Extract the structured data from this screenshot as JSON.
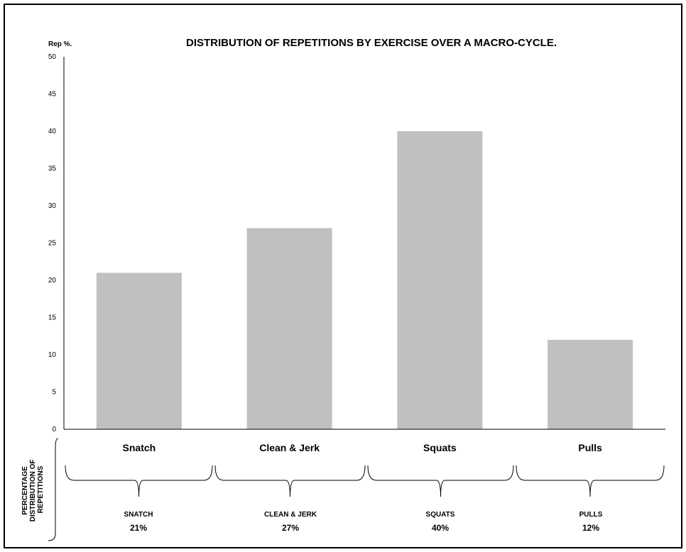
{
  "chart_data": {
    "type": "bar",
    "title": "DISTRIBUTION OF REPETITIONS BY EXERCISE OVER A MACRO-CYCLE.",
    "ylabel": "Rep %.",
    "xlabel": "",
    "categories": [
      "Snatch",
      "Clean & Jerk",
      "Squats",
      "Pulls"
    ],
    "values": [
      21,
      27,
      40,
      12
    ],
    "ylim": [
      0,
      50
    ],
    "yticks": [
      0,
      5,
      10,
      15,
      20,
      25,
      30,
      35,
      40,
      45,
      50
    ],
    "grid": false,
    "bar_color": "#c0c0c0"
  },
  "distribution": {
    "side_label": [
      "PERCENTAGE",
      "DISTRIBUTION OF",
      "REPETITIONS"
    ],
    "items": [
      {
        "name": "SNATCH",
        "percent": "21%"
      },
      {
        "name": "CLEAN & JERK",
        "percent": "27%"
      },
      {
        "name": "SQUATS",
        "percent": "40%"
      },
      {
        "name": "PULLS",
        "percent": "12%"
      }
    ]
  }
}
